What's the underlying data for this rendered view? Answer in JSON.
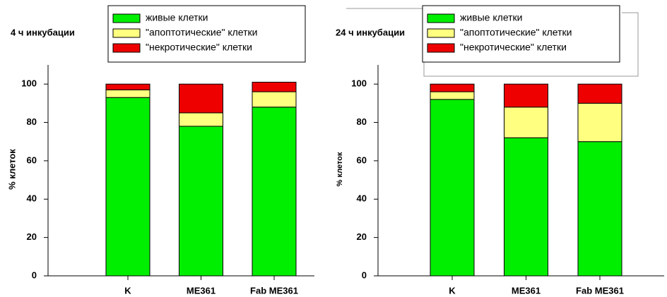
{
  "chart_data": [
    {
      "type": "stacked_bar",
      "title": "4 ч инкубации",
      "y_label": "% клеток",
      "categories": [
        "K",
        "ME361",
        "Fab ME361"
      ],
      "series": [
        {
          "name": "живые клетки",
          "color": "#00ee00",
          "values": [
            93,
            78,
            88
          ]
        },
        {
          "name": "\"апоптотические\" клетки",
          "color": "#ffff80",
          "values": [
            4,
            7,
            8
          ]
        },
        {
          "name": "\"некротические\" клетки",
          "color": "#ee0000",
          "values": [
            3,
            15,
            5
          ]
        }
      ],
      "ylim": [
        0,
        110
      ],
      "yticks": [
        0,
        20,
        40,
        60,
        80,
        100
      ]
    },
    {
      "type": "stacked_bar",
      "title": "24 ч инкубации",
      "y_label": "% клеток",
      "categories": [
        "K",
        "ME361",
        "Fab ME361"
      ],
      "series": [
        {
          "name": "живые клетки",
          "color": "#00ee00",
          "values": [
            92,
            72,
            70
          ]
        },
        {
          "name": "\"апоптотические\" клетки",
          "color": "#ffff80",
          "values": [
            4,
            16,
            20
          ]
        },
        {
          "name": "\"некротические\" клетки",
          "color": "#ee0000",
          "values": [
            4,
            12,
            10
          ]
        }
      ],
      "ylim": [
        0,
        110
      ],
      "yticks": [
        0,
        20,
        40,
        60,
        80,
        100
      ]
    }
  ]
}
